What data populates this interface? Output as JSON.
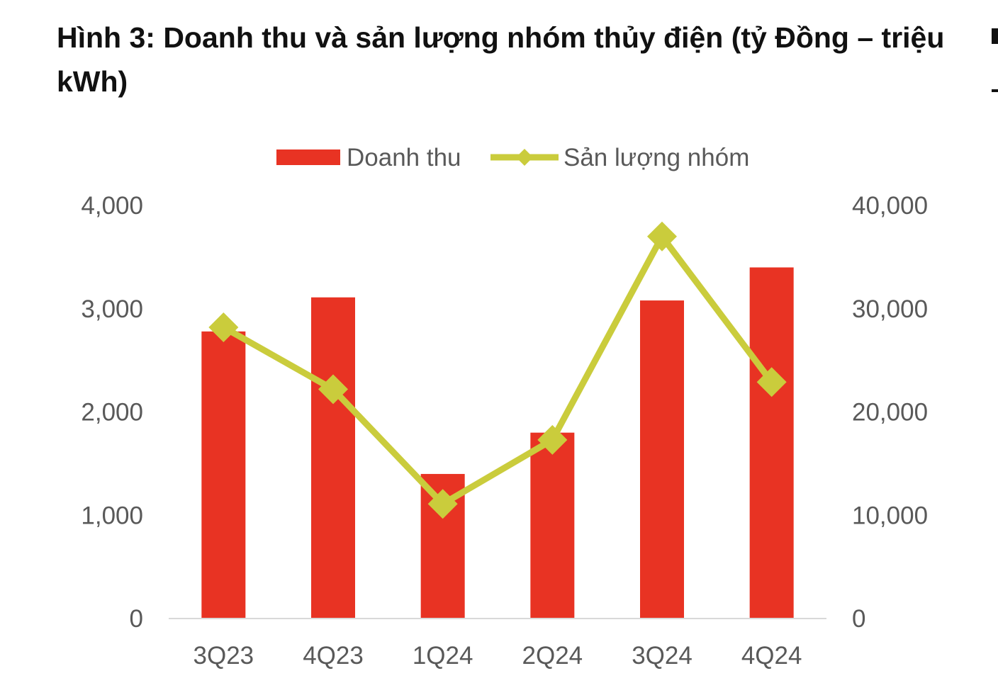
{
  "chart_data": {
    "type": "bar",
    "title": "Hình 3: Doanh thu và sản lượng nhóm thủy điện (tỷ Đồng – triệu kWh)",
    "categories": [
      "3Q23",
      "4Q23",
      "1Q24",
      "2Q24",
      "3Q24",
      "4Q24"
    ],
    "series": [
      {
        "name": "Doanh thu",
        "type": "bar",
        "axis": "left",
        "color": "#E83323",
        "values": [
          2780,
          3110,
          1400,
          1800,
          3080,
          3400
        ]
      },
      {
        "name": "Sản lượng nhóm",
        "type": "line",
        "axis": "right",
        "color": "#CACC3C",
        "marker": "diamond",
        "values": [
          28200,
          22200,
          11100,
          17300,
          37000,
          22900
        ]
      }
    ],
    "y_left": {
      "ylim": [
        0,
        4000
      ],
      "ticks": [
        0,
        1000,
        2000,
        3000,
        4000
      ],
      "tick_labels": [
        "0",
        "1,000",
        "2,000",
        "3,000",
        "4,000"
      ]
    },
    "y_right": {
      "ylim": [
        0,
        40000
      ],
      "ticks": [
        0,
        10000,
        20000,
        30000,
        40000
      ],
      "tick_labels": [
        "0",
        "10,000",
        "20,000",
        "30,000",
        "40,000"
      ]
    },
    "legend": "top-center",
    "grid": false
  }
}
